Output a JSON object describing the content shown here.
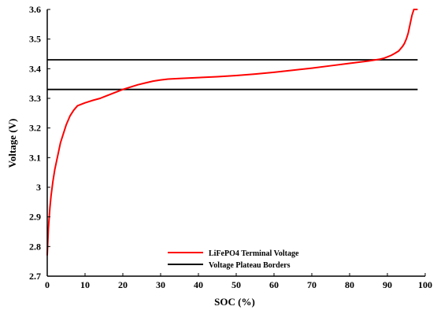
{
  "chart_data": {
    "type": "line",
    "title": "",
    "xlabel": "SOC (%)",
    "ylabel": "Voltage (V)",
    "xlim": [
      0,
      100
    ],
    "ylim": [
      2.7,
      3.6
    ],
    "xticks": [
      "0",
      "10",
      "20",
      "30",
      "40",
      "50",
      "60",
      "70",
      "80",
      "90",
      "100"
    ],
    "yticks": [
      "2.7",
      "2.8",
      "2.9",
      "3",
      "3.1",
      "3.2",
      "3.3",
      "3.4",
      "3.5",
      "3.6"
    ],
    "grid": false,
    "legend_position": "bottom-center",
    "series": [
      {
        "name": "LiFePO4 Terminal Voltage",
        "color": "#ff0000",
        "x": [
          0,
          0.3,
          0.7,
          1,
          1.5,
          2,
          2.5,
          3,
          3.5,
          4,
          5,
          6,
          7,
          8,
          9,
          10,
          12,
          14,
          16,
          18,
          20,
          22,
          24,
          26,
          28,
          30,
          32,
          35,
          40,
          45,
          50,
          55,
          60,
          65,
          70,
          75,
          80,
          85,
          87,
          88,
          89,
          90,
          91,
          92,
          93,
          94,
          94.5,
          95,
          95.5,
          96,
          96.5,
          97,
          98
        ],
        "y": [
          2.77,
          2.86,
          2.93,
          2.97,
          3.02,
          3.06,
          3.09,
          3.12,
          3.15,
          3.17,
          3.21,
          3.24,
          3.26,
          3.275,
          3.28,
          3.285,
          3.293,
          3.3,
          3.31,
          3.32,
          3.33,
          3.338,
          3.346,
          3.352,
          3.358,
          3.362,
          3.365,
          3.367,
          3.37,
          3.373,
          3.377,
          3.382,
          3.388,
          3.395,
          3.402,
          3.41,
          3.418,
          3.426,
          3.43,
          3.432,
          3.435,
          3.44,
          3.445,
          3.452,
          3.46,
          3.475,
          3.485,
          3.5,
          3.52,
          3.55,
          3.58,
          3.6,
          3.6
        ]
      },
      {
        "name": "Voltage Plateau Borders",
        "color": "#000000",
        "lines": [
          {
            "x": [
              0,
              98
            ],
            "y": [
              3.43,
              3.43
            ]
          },
          {
            "x": [
              0,
              98
            ],
            "y": [
              3.33,
              3.33
            ]
          }
        ]
      }
    ]
  }
}
